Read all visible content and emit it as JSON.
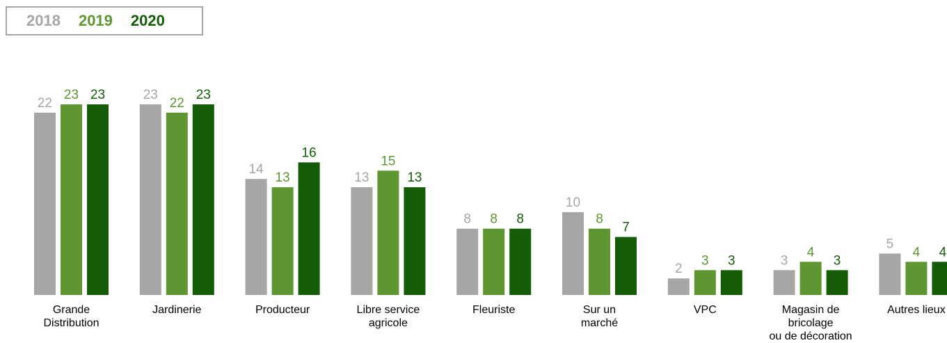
{
  "chart_data": {
    "type": "bar",
    "categories": [
      [
        "Grande",
        "Distribution"
      ],
      [
        "Jardinerie"
      ],
      [
        "Producteur"
      ],
      [
        "Libre service",
        "agricole"
      ],
      [
        "Fleuriste"
      ],
      [
        "Sur un",
        "marché"
      ],
      [
        "VPC"
      ],
      [
        "Magasin de",
        "bricolage",
        "ou de décoration"
      ],
      [
        "Autres lieux"
      ]
    ],
    "series": [
      {
        "name": "2018",
        "color": "#a6a6a6",
        "values": [
          22,
          23,
          14,
          13,
          8,
          10,
          2,
          3,
          5
        ]
      },
      {
        "name": "2019",
        "color": "#5e9631",
        "values": [
          23,
          22,
          13,
          15,
          8,
          8,
          3,
          4,
          4
        ]
      },
      {
        "name": "2020",
        "color": "#145c08",
        "values": [
          23,
          23,
          16,
          13,
          8,
          7,
          3,
          3,
          4
        ]
      }
    ],
    "ylim": [
      0,
      23
    ],
    "legend_position": "top-left",
    "grid": false
  }
}
